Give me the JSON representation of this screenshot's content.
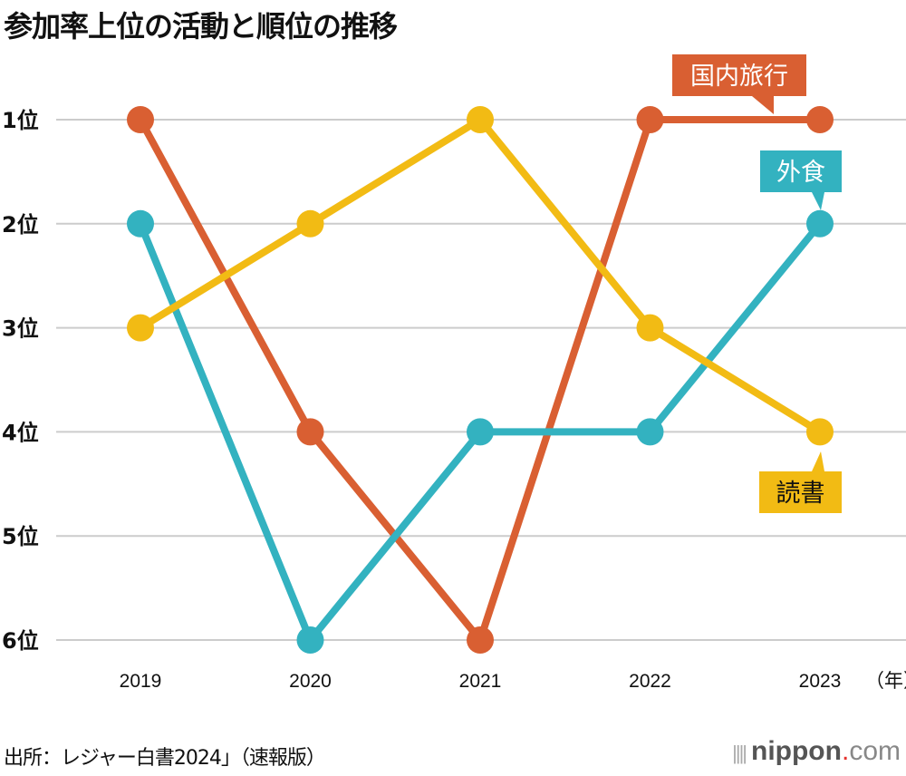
{
  "chart_data": {
    "type": "line",
    "title": "参加率上位の活動と順位の推移",
    "categories": [
      "2019",
      "2020",
      "2021",
      "2022",
      "2023"
    ],
    "x_unit": "（年）",
    "y_ticks": [
      "1位",
      "2位",
      "3位",
      "4位",
      "5位",
      "6位"
    ],
    "ylim": [
      1,
      6
    ],
    "y_inverted": true,
    "grid": true,
    "series": [
      {
        "name": "国内旅行",
        "color": "#d95f32",
        "values": [
          1,
          4,
          6,
          1,
          1
        ],
        "label_text_color": "#ffffff"
      },
      {
        "name": "外食",
        "color": "#33b2c0",
        "values": [
          2,
          6,
          4,
          4,
          2
        ],
        "label_text_color": "#ffffff"
      },
      {
        "name": "読書",
        "color": "#f2bb14",
        "values": [
          3,
          2,
          1,
          3,
          4
        ],
        "label_text_color": "#111111"
      }
    ],
    "source": "出所：レジャー白書2024」（速報版）"
  },
  "logo": {
    "main": "nippon",
    "dot": ".",
    "suffix": "com"
  }
}
